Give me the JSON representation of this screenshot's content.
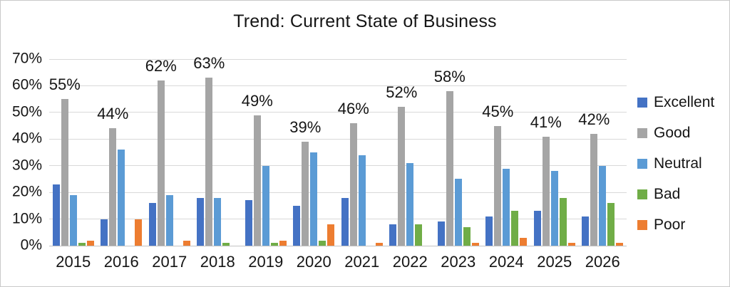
{
  "chart_data": {
    "type": "bar",
    "title": "Trend: Current State of Business",
    "categories": [
      "2015",
      "2016",
      "2017",
      "2018",
      "2019",
      "2020",
      "2021",
      "2022",
      "2023",
      "2024",
      "2025",
      "2026"
    ],
    "series": [
      {
        "name": "Excellent",
        "color": "#4472C4",
        "values": [
          23,
          10,
          16,
          18,
          17,
          15,
          18,
          8,
          9,
          11,
          13,
          11
        ]
      },
      {
        "name": "Good",
        "color": "#A5A5A5",
        "values": [
          55,
          44,
          62,
          63,
          49,
          39,
          46,
          52,
          58,
          45,
          41,
          42
        ]
      },
      {
        "name": "Neutral",
        "color": "#5B9BD5",
        "values": [
          19,
          36,
          19,
          18,
          30,
          35,
          34,
          31,
          25,
          29,
          28,
          30
        ]
      },
      {
        "name": "Bad",
        "color": "#70AD47",
        "values": [
          1,
          0,
          0,
          1,
          1,
          2,
          0,
          8,
          7,
          13,
          18,
          16
        ]
      },
      {
        "name": "Poor",
        "color": "#ED7D31",
        "values": [
          2,
          10,
          2,
          0,
          2,
          8,
          1,
          0,
          1,
          3,
          1,
          1
        ]
      }
    ],
    "data_labels": {
      "series": "Good",
      "labels": [
        "55%",
        "44%",
        "62%",
        "63%",
        "49%",
        "39%",
        "46%",
        "52%",
        "58%",
        "45%",
        "41%",
        "42%"
      ]
    },
    "xlabel": "",
    "ylabel": "",
    "ylim": [
      0,
      70
    ],
    "ytick_labels": [
      "0%",
      "10%",
      "20%",
      "30%",
      "40%",
      "50%",
      "60%",
      "70%"
    ],
    "grid": true,
    "legend_position": "right",
    "colors": {
      "gridline": "#D9D9D9",
      "text": "#151515",
      "background": "#FFFFFF"
    }
  }
}
